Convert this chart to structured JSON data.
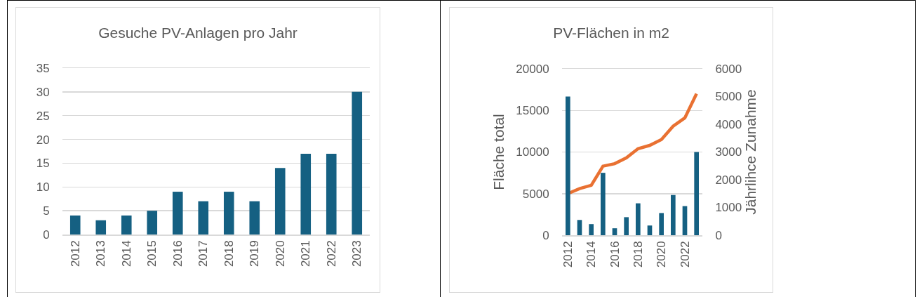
{
  "chart_data": [
    {
      "type": "bar",
      "title": "Gesuche PV-Anlagen pro Jahr",
      "categories": [
        "2012",
        "2013",
        "2014",
        "2015",
        "2016",
        "2017",
        "2018",
        "2019",
        "2020",
        "2021",
        "2022",
        "2023"
      ],
      "series": [
        {
          "color": "#156082",
          "values": [
            4,
            3,
            4,
            5,
            9,
            7,
            9,
            7,
            14,
            17,
            17,
            30
          ]
        }
      ],
      "ylim": [
        0,
        35
      ],
      "yticks": [
        0,
        5,
        10,
        15,
        20,
        25,
        30,
        35
      ],
      "grid": "y"
    },
    {
      "type": "bar",
      "title": "PV-Flächen in m2",
      "ylabel": "Fläche total",
      "y2label": "Jährlihce Zunahme",
      "x": [
        2012,
        2013,
        2014,
        2015,
        2016,
        2017,
        2018,
        2019,
        2020,
        2021,
        2022,
        2023
      ],
      "xlim": [
        2011.5,
        2023.5
      ],
      "xticks": [
        2012,
        2014,
        2016,
        2018,
        2020,
        2022
      ],
      "series": [
        {
          "axis": "y2",
          "color": "#156082",
          "values": [
            5000,
            550,
            400,
            2250,
            250,
            650,
            1150,
            350,
            800,
            1450,
            1050,
            3000
          ]
        },
        {
          "type": "line",
          "color": "#e97132",
          "values": [
            5000,
            5600,
            6000,
            8300,
            8600,
            9300,
            10400,
            10800,
            11500,
            13100,
            14100,
            17000
          ]
        }
      ],
      "ylim": [
        0,
        20000
      ],
      "yticks": [
        0,
        5000,
        10000,
        15000,
        20000
      ],
      "y2lim": [
        0,
        6000
      ],
      "y2ticks": [
        0,
        1000,
        2000,
        3000,
        4000,
        5000,
        6000
      ],
      "grid": "y"
    }
  ]
}
